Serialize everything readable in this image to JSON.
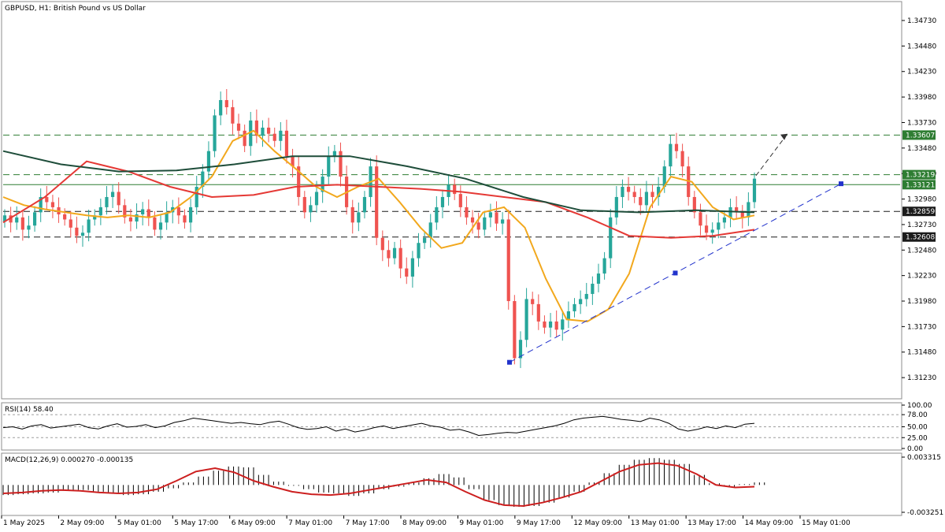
{
  "chart_data": [
    {
      "type": "candlestick",
      "title": "GBPUSD, H1:  British Pound vs US Dollar",
      "ylim": [
        1.3103,
        1.349
      ],
      "y_ticks": [
        "1.34730",
        "1.34480",
        "1.34230",
        "1.33980",
        "1.33730",
        "1.33480",
        "1.33230",
        "1.32980",
        "1.32730",
        "1.32480",
        "1.32230",
        "1.31980",
        "1.31730",
        "1.31480",
        "1.31230"
      ],
      "x_ticks": [
        "1 May 2025",
        "2 May 09:00",
        "5 May 01:00",
        "5 May 17:00",
        "6 May 09:00",
        "7 May 01:00",
        "7 May 17:00",
        "8 May 09:00",
        "9 May 01:00",
        "9 May 17:00",
        "12 May 09:00",
        "13 May 01:00",
        "13 May 17:00",
        "14 May 09:00",
        "15 May 01:00"
      ],
      "price_levels": [
        {
          "label": "1.33607",
          "value": 1.33607,
          "style": "dashed",
          "color": "#2e7d32"
        },
        {
          "label": "1.33219",
          "value": 1.33219,
          "style": "dashed",
          "color": "#2e7d32"
        },
        {
          "label": "1.33121",
          "value": 1.33121,
          "style": "solid",
          "color": "#2e7d32"
        },
        {
          "label": "1.32859",
          "value": 1.32859,
          "style": "dashed",
          "color": "#1b1b1b"
        },
        {
          "label": "1.32608",
          "value": 1.32608,
          "style": "dashed",
          "color": "#1b1b1b"
        }
      ],
      "candles_close_approx": [
        1.3282,
        1.3275,
        1.328,
        1.3268,
        1.3272,
        1.3285,
        1.33,
        1.3295,
        1.329,
        1.3283,
        1.3278,
        1.327,
        1.3262,
        1.3265,
        1.3278,
        1.3282,
        1.329,
        1.33,
        1.3305,
        1.3292,
        1.328,
        1.3276,
        1.3283,
        1.3288,
        1.328,
        1.3268,
        1.3275,
        1.3285,
        1.329,
        1.3282,
        1.3275,
        1.329,
        1.331,
        1.3325,
        1.3345,
        1.338,
        1.3395,
        1.3388,
        1.3372,
        1.3365,
        1.335,
        1.3375,
        1.336,
        1.3368,
        1.3362,
        1.3355,
        1.3365,
        1.334,
        1.333,
        1.33,
        1.3285,
        1.3292,
        1.3305,
        1.332,
        1.334,
        1.3345,
        1.332,
        1.329,
        1.3275,
        1.3285,
        1.33,
        1.333,
        1.326,
        1.3248,
        1.324,
        1.325,
        1.323,
        1.3222,
        1.324,
        1.3255,
        1.326,
        1.3275,
        1.329,
        1.33,
        1.3312,
        1.3303,
        1.329,
        1.328,
        1.3275,
        1.3268,
        1.328,
        1.3285,
        1.3274,
        1.3278,
        1.3198,
        1.3142,
        1.316,
        1.32,
        1.3195,
        1.3178,
        1.3172,
        1.3178,
        1.317,
        1.318,
        1.3188,
        1.3195,
        1.32,
        1.3205,
        1.3215,
        1.3225,
        1.324,
        1.328,
        1.33,
        1.331,
        1.3305,
        1.33,
        1.3292,
        1.3305,
        1.33,
        1.331,
        1.333,
        1.3352,
        1.3345,
        1.333,
        1.33,
        1.3285,
        1.3272,
        1.3265,
        1.3268,
        1.3275,
        1.328,
        1.329,
        1.3285,
        1.328,
        1.3295,
        1.3318
      ],
      "series": [
        {
          "name": "",
          "color": "#f2a81d",
          "values": [
            1.33,
            1.3292,
            1.3288,
            1.3285,
            1.3282,
            1.328,
            1.3282,
            1.328,
            1.3285,
            1.33,
            1.332,
            1.3355,
            1.3365,
            1.3345,
            1.3328,
            1.331,
            1.33,
            1.331,
            1.3318,
            1.3295,
            1.327,
            1.325,
            1.3255,
            1.3285,
            1.329,
            1.327,
            1.322,
            1.318,
            1.3178,
            1.319,
            1.3225,
            1.329,
            1.332,
            1.3315,
            1.329,
            1.3278,
            1.3282
          ]
        },
        {
          "name": "",
          "color": "#e53935",
          "values": [
            1.3275,
            1.33,
            1.3335,
            1.3325,
            1.331,
            1.33,
            1.3302,
            1.331,
            1.3312,
            1.331,
            1.3308,
            1.3305,
            1.33,
            1.3295,
            1.328,
            1.3262,
            1.326,
            1.3262,
            1.3268
          ]
        },
        {
          "name": "",
          "color": "#1e4d3a",
          "values": [
            1.3345,
            1.3332,
            1.3325,
            1.3326,
            1.3332,
            1.334,
            1.334,
            1.333,
            1.3318,
            1.33,
            1.3287,
            1.3285,
            1.3287,
            1.3285
          ]
        }
      ],
      "trendline": {
        "style": "dashed",
        "color": "#2233cc",
        "from": {
          "date": "12 May 13:00",
          "price": 1.3138
        },
        "to": {
          "date": "15 May 23:00",
          "price": 1.3313
        }
      },
      "projection_arrow": {
        "style": "dashed",
        "color": "#333333"
      }
    },
    {
      "type": "line",
      "title": "RSI(14) 58.40",
      "ylim": [
        0,
        100
      ],
      "y_ticks": [
        "100.00",
        "78.00",
        "50.00",
        "25.00",
        "0.00"
      ],
      "levels": [
        78,
        50,
        25
      ],
      "values": [
        48,
        50,
        45,
        52,
        55,
        47,
        50,
        53,
        56,
        48,
        45,
        52,
        57,
        49,
        51,
        55,
        48,
        52,
        60,
        64,
        70,
        67,
        64,
        61,
        58,
        60,
        57,
        55,
        60,
        63,
        56,
        48,
        44,
        46,
        50,
        40,
        45,
        38,
        42,
        48,
        52,
        46,
        50,
        54,
        58,
        52,
        49,
        42,
        44,
        38,
        30,
        32,
        35,
        37,
        36,
        40,
        44,
        48,
        52,
        58,
        66,
        70,
        72,
        74,
        71,
        67,
        65,
        62,
        70,
        66,
        58,
        45,
        40,
        44,
        50,
        46,
        52,
        48,
        56,
        58
      ]
    },
    {
      "type": "bar",
      "title": "MACD(12,26,9) 0.000270 -0.000135",
      "ylim": [
        -0.003251,
        0.003315
      ],
      "y_ticks": [
        "0.003315",
        "-0.003251"
      ],
      "histogram_color": "#000000",
      "signal_color": "#cc1f1f",
      "histogram": [
        -0.0012,
        -0.0011,
        -0.001,
        -0.0009,
        -0.0007,
        -0.0006,
        -0.0008,
        -0.0009,
        -0.0012,
        -0.0011,
        -0.0008,
        -0.0004,
        0.0003,
        0.001,
        0.0017,
        0.0022,
        0.0021,
        0.0012,
        0.0004,
        -0.0001,
        -0.0005,
        -0.0009,
        -0.001,
        -0.0013,
        -0.001,
        -0.0005,
        -0.0002,
        0.0003,
        0.0008,
        0.0013,
        0.0009,
        -0.0005,
        -0.0018,
        -0.0024,
        -0.0026,
        -0.0025,
        -0.0021,
        -0.0015,
        -0.0008,
        0.0003,
        0.0014,
        0.0024,
        0.003,
        0.0032,
        0.003,
        0.0025,
        0.0012,
        0.0002,
        -0.0002,
        0.0001,
        0.0003
      ],
      "signal": [
        -0.001,
        -0.0009,
        -0.0007,
        -0.0006,
        -0.0007,
        -0.0009,
        -0.001,
        -0.0009,
        -0.0005,
        0.0005,
        0.0016,
        0.002,
        0.0015,
        0.0005,
        -0.0002,
        -0.0008,
        -0.0011,
        -0.0012,
        -0.001,
        -0.0006,
        -0.0002,
        0.0002,
        0.0006,
        0.0003,
        -0.0008,
        -0.0018,
        -0.0024,
        -0.0025,
        -0.0021,
        -0.0015,
        -0.0008,
        0.0004,
        0.0016,
        0.0024,
        0.0026,
        0.0023,
        0.0013,
        0.0,
        -0.0003,
        -0.0002
      ]
    }
  ]
}
